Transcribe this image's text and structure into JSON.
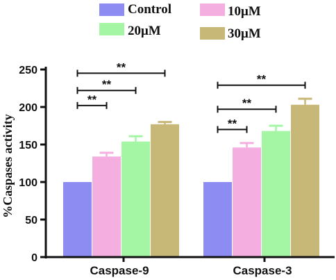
{
  "chart_data": {
    "type": "bar",
    "ylabel": "%Caspases activity",
    "xlabel": "",
    "ylim": [
      0,
      250
    ],
    "yticks": [
      0,
      50,
      100,
      150,
      200,
      250
    ],
    "categories": [
      "Caspase-9",
      "Caspase-3"
    ],
    "series": [
      {
        "name": "Control",
        "color": "#8c8cf2",
        "values": [
          100,
          100
        ],
        "errors": [
          0,
          0
        ]
      },
      {
        "name": "10μM",
        "color": "#f5aee0",
        "values": [
          134,
          146
        ],
        "errors": [
          5,
          6
        ]
      },
      {
        "name": "20μM",
        "color": "#a4f5a4",
        "values": [
          154,
          168
        ],
        "errors": [
          7,
          7
        ]
      },
      {
        "name": "30μM",
        "color": "#c7b878",
        "values": [
          177,
          203
        ],
        "errors": [
          3,
          8
        ]
      }
    ],
    "significance": [
      {
        "category": 0,
        "from": 0,
        "to": 1,
        "y": 202,
        "label": "**"
      },
      {
        "category": 0,
        "from": 0,
        "to": 2,
        "y": 222,
        "label": "**"
      },
      {
        "category": 0,
        "from": 0,
        "to": 3,
        "y": 245,
        "label": "**"
      },
      {
        "category": 1,
        "from": 0,
        "to": 1,
        "y": 170,
        "label": "**"
      },
      {
        "category": 1,
        "from": 0,
        "to": 2,
        "y": 197,
        "label": "**"
      },
      {
        "category": 1,
        "from": 0,
        "to": 3,
        "y": 229,
        "label": "**"
      }
    ],
    "legend": [
      {
        "label": "Control",
        "color": "#8c8cf2"
      },
      {
        "label": "10μM",
        "color": "#f5aee0"
      },
      {
        "label": "20μM",
        "color": "#a4f5a4"
      },
      {
        "label": "30μM",
        "color": "#c7b878"
      }
    ],
    "legend_position": "top"
  }
}
